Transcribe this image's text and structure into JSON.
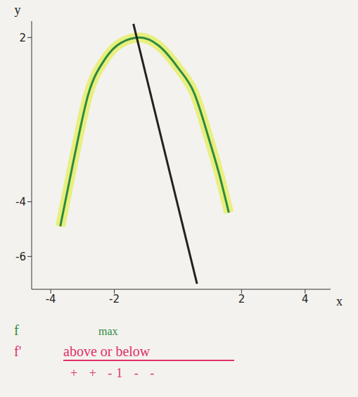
{
  "chart_data": {
    "type": "line",
    "x_label": "x",
    "y_label": "y",
    "xlim": [
      -4.6,
      4.8
    ],
    "ylim": [
      -7.2,
      2.6
    ],
    "xticks": [
      -4,
      -2,
      2,
      4
    ],
    "yticks": [
      -6,
      -4,
      2
    ],
    "grid": false,
    "series": [
      {
        "name": "f",
        "color": "#2e8b3e",
        "line_style": "curve",
        "x": [
          -3.7,
          -3.3,
          -2.8,
          -2.3,
          -1.8,
          -1.2,
          -0.6,
          0,
          0.5,
          1.0,
          1.3,
          1.6
        ],
        "values": [
          -4.9,
          -2.6,
          0,
          1.2,
          1.8,
          2.0,
          1.7,
          0.9,
          0,
          -1.8,
          -3.0,
          -4.4
        ]
      },
      {
        "name": "f'",
        "color": "#222222",
        "line_style": "straight",
        "x": [
          -1.4,
          0.6
        ],
        "values": [
          2.5,
          -7.0
        ]
      }
    ],
    "annotations": [
      {
        "text": "max",
        "color": "#2e8b3e"
      },
      {
        "text": "above or below",
        "color": "#e0306a"
      },
      {
        "text": "+ + -1 - -",
        "color": "#e0306a"
      }
    ]
  }
}
